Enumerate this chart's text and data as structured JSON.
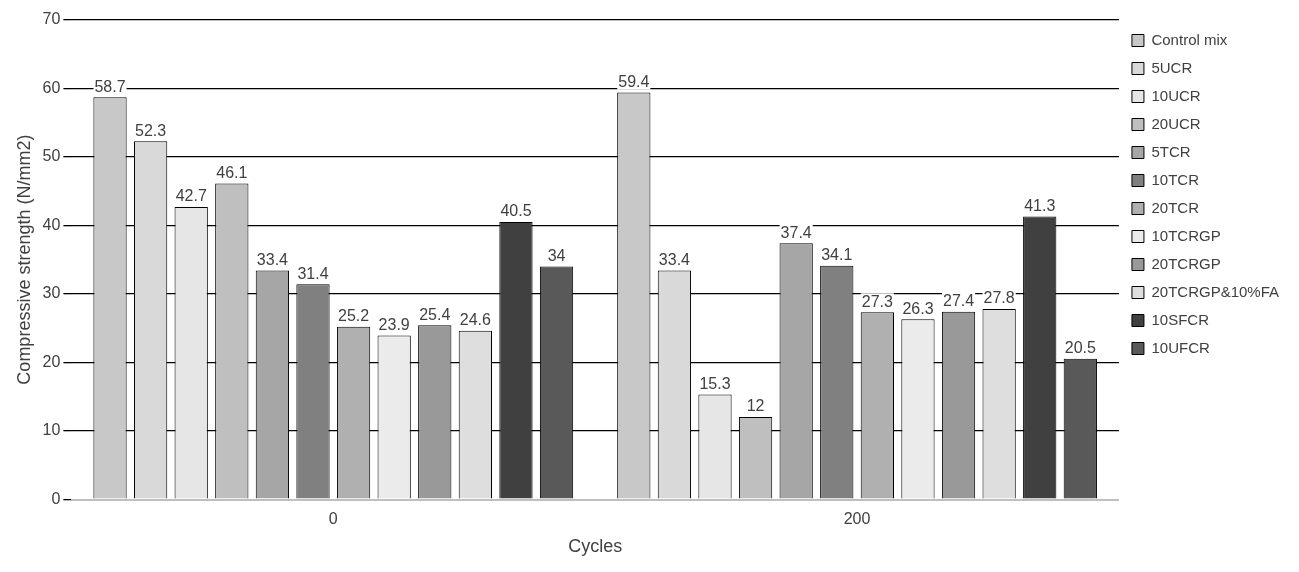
{
  "chart_data": {
    "type": "bar",
    "xlabel": "Cycles",
    "ylabel": "Compressive strength (N/mm2)",
    "categories": [
      "0",
      "200"
    ],
    "series": [
      {
        "name": "Control mix",
        "color": "#c8c8c8",
        "values": [
          58.7,
          59.4
        ]
      },
      {
        "name": "5UCR",
        "color": "#d9d9d9",
        "values": [
          52.3,
          33.4
        ]
      },
      {
        "name": "10UCR",
        "color": "#e6e6e6",
        "values": [
          42.7,
          15.3
        ]
      },
      {
        "name": "20UCR",
        "color": "#bfbfbf",
        "values": [
          46.1,
          12
        ]
      },
      {
        "name": "5TCR",
        "color": "#a6a6a6",
        "values": [
          33.4,
          37.4
        ]
      },
      {
        "name": "10TCR",
        "color": "#808080",
        "values": [
          31.4,
          34.1
        ]
      },
      {
        "name": "20TCR",
        "color": "#b0b0b0",
        "values": [
          25.2,
          27.3
        ]
      },
      {
        "name": "10TCRGP",
        "color": "#ebebeb",
        "values": [
          23.9,
          26.3
        ]
      },
      {
        "name": "20TCRGP",
        "color": "#999999",
        "values": [
          25.4,
          27.4
        ]
      },
      {
        "name": "20TCRGP&10%FA",
        "color": "#dedede",
        "values": [
          24.6,
          27.8
        ]
      },
      {
        "name": "10SFCR",
        "color": "#404040",
        "values": [
          40.5,
          41.3
        ]
      },
      {
        "name": "10UFCR",
        "color": "#595959",
        "values": [
          34,
          20.5
        ]
      }
    ],
    "ylim": [
      0,
      70
    ],
    "yticks": [
      0,
      10,
      20,
      30,
      40,
      50,
      60,
      70
    ],
    "grid": "y",
    "legend": "right",
    "data_labels": true
  }
}
